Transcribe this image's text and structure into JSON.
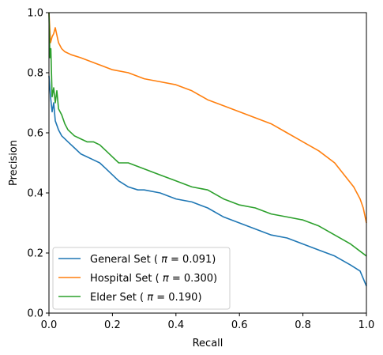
{
  "chart_data": {
    "type": "line",
    "title": "",
    "xlabel": "Recall",
    "ylabel": "Precision",
    "xlim": [
      0.0,
      1.0
    ],
    "ylim": [
      0.0,
      1.0
    ],
    "xticks": [
      "0.0",
      "0.2",
      "0.4",
      "0.6",
      "0.8",
      "1.0"
    ],
    "yticks": [
      "0.0",
      "0.2",
      "0.4",
      "0.6",
      "0.8",
      "1.0"
    ],
    "grid": false,
    "legend_position": "lower-left",
    "series": [
      {
        "name": "General Set ( π = 0.091)",
        "legend_prefix": "General Set (",
        "legend_pi": "π",
        "legend_suffix": "= 0.091)",
        "color": "#1f77b4",
        "x": [
          0.0,
          0.005,
          0.01,
          0.015,
          0.02,
          0.03,
          0.04,
          0.05,
          0.06,
          0.07,
          0.08,
          0.1,
          0.12,
          0.14,
          0.16,
          0.18,
          0.2,
          0.22,
          0.25,
          0.28,
          0.3,
          0.35,
          0.4,
          0.45,
          0.5,
          0.55,
          0.6,
          0.65,
          0.7,
          0.75,
          0.8,
          0.85,
          0.9,
          0.95,
          0.98,
          1.0
        ],
        "y": [
          0.79,
          0.72,
          0.67,
          0.7,
          0.64,
          0.61,
          0.59,
          0.58,
          0.57,
          0.56,
          0.55,
          0.53,
          0.52,
          0.51,
          0.5,
          0.48,
          0.46,
          0.44,
          0.42,
          0.41,
          0.41,
          0.4,
          0.38,
          0.37,
          0.35,
          0.32,
          0.3,
          0.28,
          0.26,
          0.25,
          0.23,
          0.21,
          0.19,
          0.16,
          0.14,
          0.09
        ]
      },
      {
        "name": "Hospital Set ( π = 0.300)",
        "legend_prefix": "Hospital Set (",
        "legend_pi": "π",
        "legend_suffix": "= 0.300)",
        "color": "#ff7f0e",
        "x": [
          0.0,
          0.005,
          0.01,
          0.015,
          0.02,
          0.03,
          0.04,
          0.05,
          0.07,
          0.1,
          0.15,
          0.2,
          0.25,
          0.3,
          0.35,
          0.4,
          0.45,
          0.5,
          0.55,
          0.6,
          0.65,
          0.7,
          0.75,
          0.8,
          0.85,
          0.9,
          0.93,
          0.96,
          0.98,
          0.99,
          1.0
        ],
        "y": [
          1.0,
          0.9,
          0.92,
          0.93,
          0.95,
          0.9,
          0.88,
          0.87,
          0.86,
          0.85,
          0.83,
          0.81,
          0.8,
          0.78,
          0.77,
          0.76,
          0.74,
          0.71,
          0.69,
          0.67,
          0.65,
          0.63,
          0.6,
          0.57,
          0.54,
          0.5,
          0.46,
          0.42,
          0.38,
          0.35,
          0.3
        ]
      },
      {
        "name": "Elder Set ( π = 0.190)",
        "legend_prefix": "Elder Set (",
        "legend_pi": "π",
        "legend_suffix": "= 0.190)",
        "color": "#2ca02c",
        "x": [
          0.0,
          0.003,
          0.006,
          0.01,
          0.015,
          0.02,
          0.025,
          0.03,
          0.04,
          0.05,
          0.06,
          0.08,
          0.1,
          0.12,
          0.14,
          0.16,
          0.18,
          0.2,
          0.22,
          0.25,
          0.3,
          0.35,
          0.4,
          0.45,
          0.5,
          0.55,
          0.6,
          0.65,
          0.7,
          0.75,
          0.8,
          0.85,
          0.9,
          0.95,
          1.0
        ],
        "y": [
          1.0,
          0.85,
          0.88,
          0.72,
          0.75,
          0.7,
          0.74,
          0.68,
          0.66,
          0.63,
          0.61,
          0.59,
          0.58,
          0.57,
          0.57,
          0.56,
          0.54,
          0.52,
          0.5,
          0.5,
          0.48,
          0.46,
          0.44,
          0.42,
          0.41,
          0.38,
          0.36,
          0.35,
          0.33,
          0.32,
          0.31,
          0.29,
          0.26,
          0.23,
          0.19
        ]
      }
    ]
  }
}
